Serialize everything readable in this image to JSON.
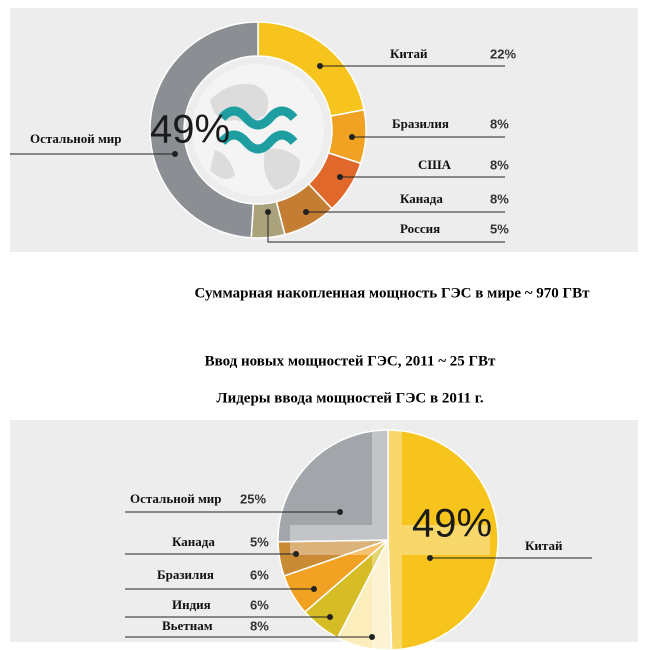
{
  "chart_data": [
    {
      "type": "donut",
      "categories": [
        "Китай",
        "Бразилия",
        "США",
        "Канада",
        "Россия",
        "Остальной мир"
      ],
      "values": [
        22,
        8,
        8,
        8,
        5,
        49
      ],
      "value_labels": [
        "22%",
        "8%",
        "8%",
        "8%",
        "5%",
        "49%"
      ],
      "colors": [
        "#f6c41c",
        "#f1a223",
        "#e0682a",
        "#c47e33",
        "#aaa27a",
        "#8b8e92"
      ],
      "annotation": "Суммарная накопленная мощность ГЭС в мире ~ 970 ГВт"
    },
    {
      "type": "pie",
      "title": "Ввод новых мощностей ГЭС, 2011  ~ 25 ГВт",
      "subtitle": "Лидеры ввода мощностей ГЭС в 2011 г.",
      "categories": [
        "Китай",
        "Вьетнам",
        "Индия",
        "Бразилия",
        "Канада",
        "Остальной мир"
      ],
      "values": [
        49,
        8,
        6,
        6,
        5,
        25
      ],
      "value_labels": [
        "49%",
        "8%",
        "6%",
        "6%",
        "5%",
        "25%"
      ],
      "colors": [
        "#f6c41c",
        "#fbeebc",
        "#d6bd26",
        "#f1a223",
        "#c88a32",
        "#a2a5aa"
      ]
    }
  ]
}
